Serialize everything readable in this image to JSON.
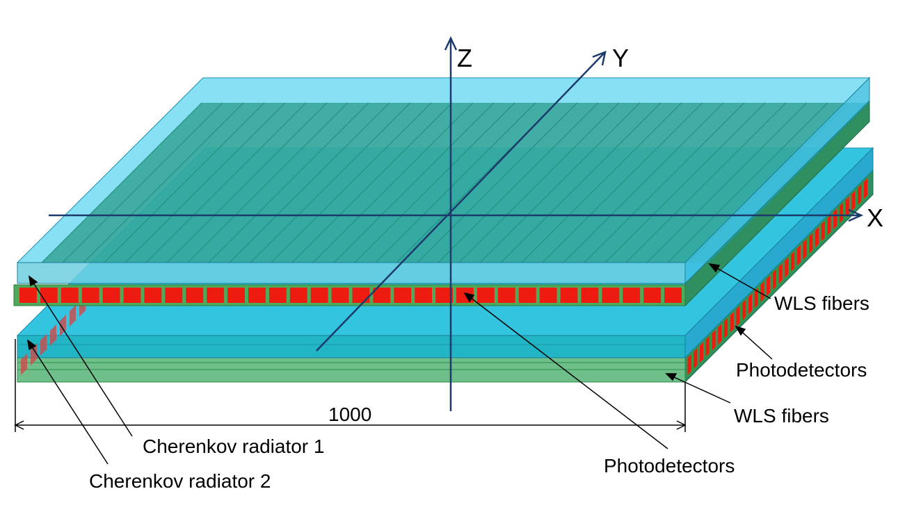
{
  "axes": {
    "x": "X",
    "y": "Y",
    "z": "Z"
  },
  "labels": {
    "wls_fibers_top": "WLS fibers",
    "photodetectors_right": "Photodetectors",
    "wls_fibers_bottom": "WLS fibers",
    "photodetectors_center": "Photodetectors",
    "cherenkov_1": "Cherenkov radiator 1",
    "cherenkov_2": "Cherenkov radiator 2"
  },
  "dimension": "1000",
  "colors": {
    "radiator": "#7fdcf5",
    "radiator_front": "#5fc7e6",
    "fiber_layer": "#2e9a78",
    "fiber_front": "#3aa56a",
    "photodetector": "#ee1c10",
    "photodetector_frame": "#3c9b3c",
    "axis": "#1b3a6b"
  },
  "photodetector_count_front": 32,
  "photodetector_count_side": 30
}
